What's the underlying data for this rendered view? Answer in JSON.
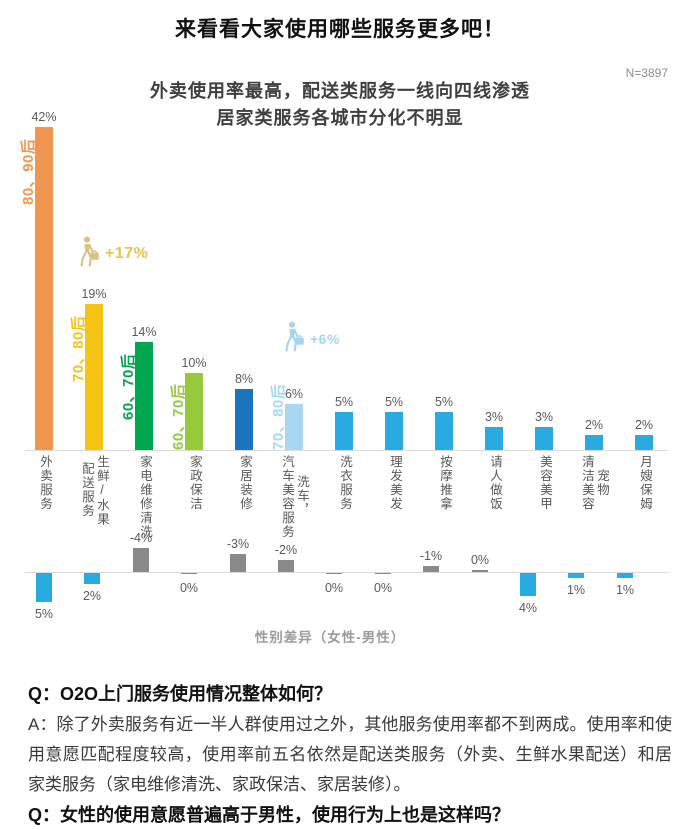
{
  "header": {
    "title": "来看看大家使用哪些服务更多吧！",
    "subtitle_line1": "外卖使用率最高，配送类服务一线向四线渗透",
    "subtitle_line2": "居家类服务各城市分化不明显",
    "sample_note": "N=3897"
  },
  "chart_data": {
    "type": "bar",
    "title": "外卖使用率最高，配送类服务一线向四线渗透 居家类服务各城市分化不明显",
    "sample_note": "N=3897",
    "values_unit": "%",
    "grid": false,
    "legend": "none",
    "categories": [
      {
        "label": "外卖服务",
        "columns": [
          "外卖服务"
        ]
      },
      {
        "label": "生鲜/水果配送服务",
        "columns": [
          "配送服务",
          "生鲜/水果"
        ]
      },
      {
        "label": "家电维修清洗",
        "columns": [
          "家电维修清洗"
        ]
      },
      {
        "label": "家政保洁",
        "columns": [
          "家政保洁"
        ]
      },
      {
        "label": "家居装修",
        "columns": [
          "家居装修"
        ]
      },
      {
        "label": "洗车，汽车美容服务",
        "columns": [
          "汽车美容服务",
          "洗车，"
        ]
      },
      {
        "label": "洗衣服务",
        "columns": [
          "洗衣服务"
        ]
      },
      {
        "label": "理发美发",
        "columns": [
          "理发美发"
        ]
      },
      {
        "label": "按摩推拿",
        "columns": [
          "按摩推拿"
        ]
      },
      {
        "label": "请人做饭",
        "columns": [
          "请人做饭"
        ]
      },
      {
        "label": "美容美甲",
        "columns": [
          "美容美甲"
        ]
      },
      {
        "label": "宠物清洁美容",
        "columns": [
          "清洁美容",
          "宠物"
        ]
      },
      {
        "label": "月嫂保姆",
        "columns": [
          "月嫂保姆"
        ]
      }
    ],
    "usage_series": {
      "name": "使用率",
      "values": [
        42,
        19,
        14,
        10,
        8,
        6,
        5,
        5,
        5,
        3,
        3,
        2,
        2
      ],
      "labels": [
        "42%",
        "19%",
        "14%",
        "10%",
        "8%",
        "6%",
        "5%",
        "5%",
        "5%",
        "3%",
        "3%",
        "2%",
        "2%"
      ],
      "ylim": [
        0,
        45
      ],
      "bar_colors": [
        "#F0964E",
        "#F5C413",
        "#00A650",
        "#97C93D",
        "#1B75BC",
        "#A9D7F2",
        "#29ABE2",
        "#29ABE2",
        "#29ABE2",
        "#29ABE2",
        "#29ABE2",
        "#29ABE2",
        "#29ABE2"
      ]
    },
    "gender_series": {
      "name": "性别差异（女性-男性）",
      "values": [
        5,
        2,
        -4,
        0,
        -3,
        -2,
        0,
        0,
        -1,
        0,
        4,
        1,
        1
      ],
      "labels": [
        "5%",
        "2%",
        "-4%",
        "0%",
        "-3%",
        "-2%",
        "0%",
        "0%",
        "-1%",
        "0%",
        "4%",
        "1%",
        "1%"
      ],
      "directions": [
        "down",
        "down",
        "up",
        "down",
        "up",
        "up",
        "down",
        "down",
        "up",
        "up",
        "down",
        "down",
        "down"
      ],
      "positive_color": "#29ABE2",
      "negative_color": "#898989",
      "note": "正值（蓝色）向下表示女性更高，负值（灰色）向上表示男性更高"
    },
    "demo_labels": [
      {
        "category_index": 0,
        "text": "80、90后",
        "color": "#F0964E"
      },
      {
        "category_index": 1,
        "text": "70、80后",
        "color": "#F5C413"
      },
      {
        "category_index": 2,
        "text": "60、70后",
        "color": "#00A650"
      },
      {
        "category_index": 3,
        "text": "60、70后",
        "color": "#97C93D"
      },
      {
        "category_index": 5,
        "text": "70、80后",
        "color": "#A9D7F2"
      }
    ],
    "annotations": [
      {
        "category_index": 1,
        "icon": "person-with-bag-icon",
        "icon_color": "#D8C383",
        "text": "+17%",
        "text_color": "#E8C44F"
      },
      {
        "category_index": 5,
        "icon": "person-with-bag-icon",
        "icon_color": "#A5D5EF",
        "text": "+6%",
        "text_color": "#A5D5EF"
      }
    ]
  },
  "qa": {
    "question1": "Q：O2O上门服务使用情况整体如何？",
    "answer1": "A：除了外卖服务有近一半人群使用过之外，其他服务使用率都不到两成。使用率和使用意愿匹配程度较高，使用率前五名依然是配送类服务（外卖、生鲜水果配送）和居家类服务（家电维修清洗、家政保洁、家居装修）。",
    "question2": "Q：女性的使用意愿普遍高于男性，使用行为上也是这样吗？"
  }
}
